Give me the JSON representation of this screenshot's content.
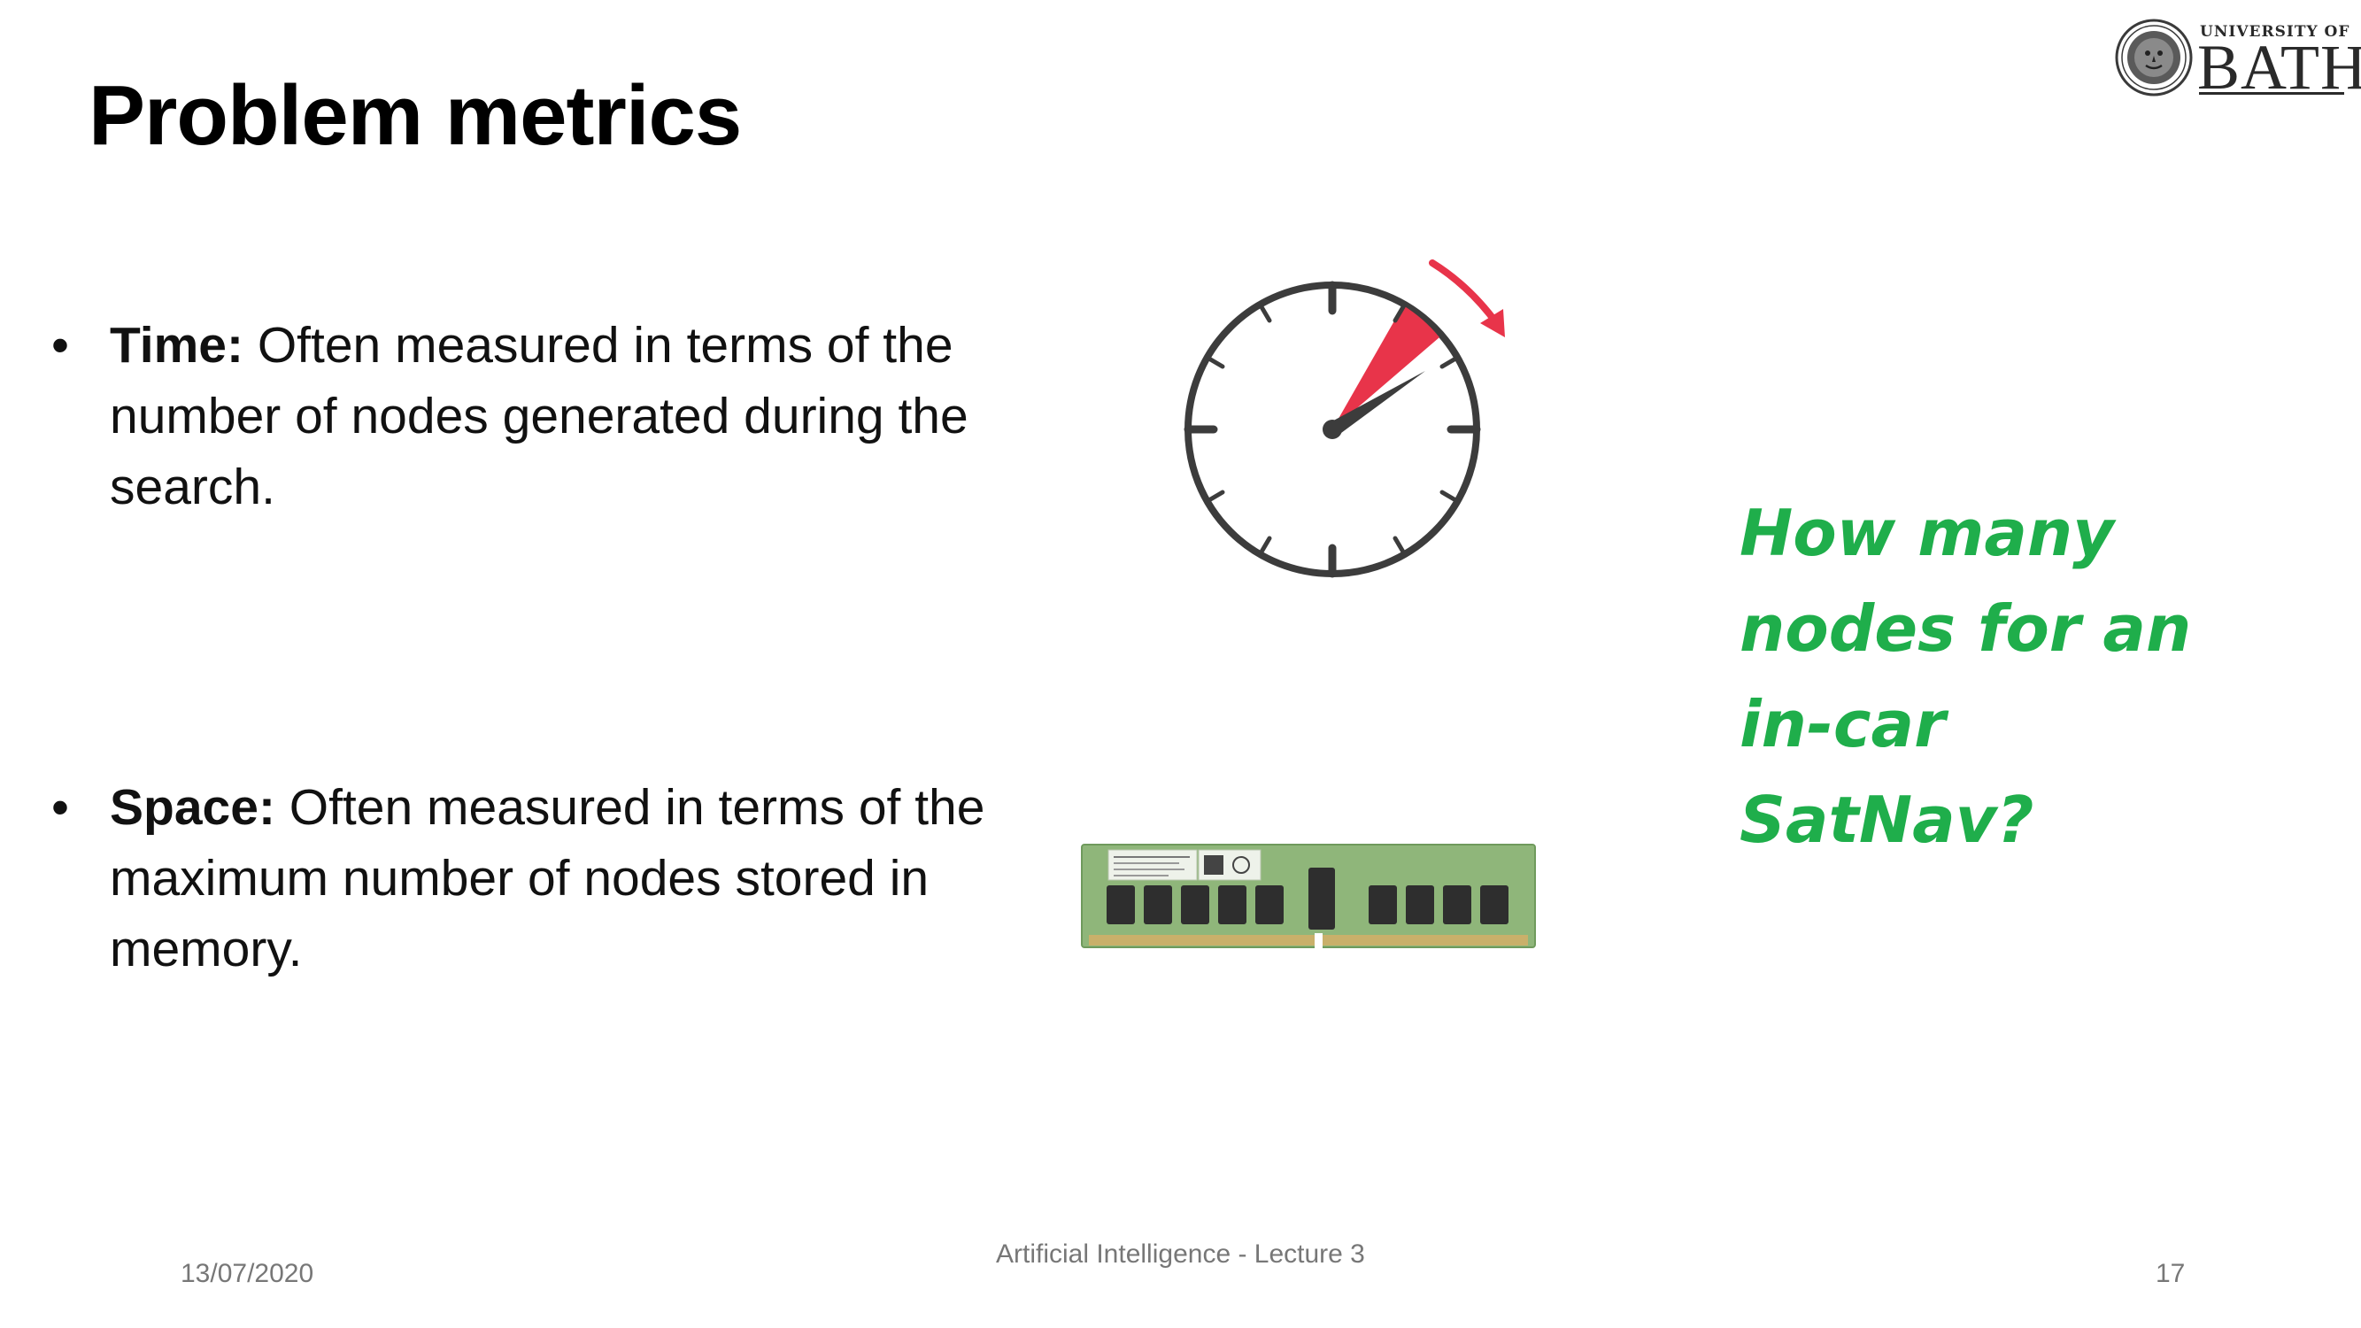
{
  "slide": {
    "title": "Problem metrics",
    "bullets": [
      {
        "marker": "•",
        "term": "Time:",
        "text": " Often measured in terms of the number of nodes generated during the search."
      },
      {
        "marker": "•",
        "term": "Space:",
        "text": " Often measured in terms of the maximum number of nodes stored in memory."
      }
    ],
    "question": "How many nodes for an in-car SatNav?",
    "images": {
      "timer": "stopwatch-icon",
      "memory": "ram-module-image"
    }
  },
  "logo": {
    "top_text": "UNIVERSITY OF",
    "main_text": "BATH"
  },
  "footer": {
    "date": "13/07/2020",
    "center": "Artificial Intelligence - Lecture 3",
    "page_number": "17"
  },
  "colors": {
    "title": "#000000",
    "question": "#1fae4b",
    "timer_accent": "#e8344a",
    "footer": "#777777"
  }
}
